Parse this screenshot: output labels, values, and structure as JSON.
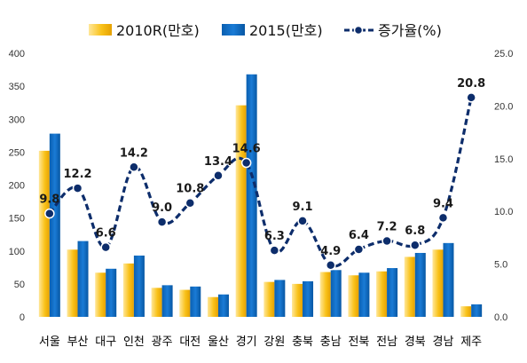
{
  "chart_data": {
    "type": "bar",
    "categories": [
      "서울",
      "부산",
      "대구",
      "인천",
      "광주",
      "대전",
      "울산",
      "경기",
      "강원",
      "충북",
      "충남",
      "전북",
      "전남",
      "경북",
      "경남",
      "제주"
    ],
    "series": [
      {
        "name": "2010R(만호)",
        "type": "bar",
        "axis": "left",
        "color": "#F9C21A",
        "values": [
          252,
          102,
          67,
          81,
          44,
          41,
          30,
          321,
          53,
          50,
          68,
          63,
          69,
          91,
          102,
          16
        ]
      },
      {
        "name": "2015(만호)",
        "type": "bar",
        "axis": "left",
        "color": "#0A6BC4",
        "values": [
          278,
          115,
          73,
          93,
          48,
          46,
          34,
          368,
          56,
          54,
          71,
          67,
          74,
          97,
          112,
          19
        ]
      },
      {
        "name": "증가율(%)",
        "type": "line",
        "axis": "right",
        "color": "#0D2D6B",
        "line_style": "dashed",
        "values": [
          9.8,
          12.2,
          6.6,
          14.2,
          9.0,
          10.8,
          13.4,
          14.6,
          6.3,
          9.1,
          4.9,
          6.4,
          7.2,
          6.8,
          9.4,
          20.8
        ],
        "data_labels": [
          "9.8",
          "12.2",
          "6.6",
          "14.2",
          "9.0",
          "10.8",
          "13.4",
          "14.6",
          "6.3",
          "9.1",
          "4.9",
          "6.4",
          "7.2",
          "6.8",
          "9.4",
          "20.8"
        ]
      }
    ],
    "y_left": {
      "min": 0,
      "max": 400,
      "ticks": [
        "0",
        "50",
        "100",
        "150",
        "200",
        "250",
        "300",
        "350",
        "400"
      ]
    },
    "y_right": {
      "min": 0,
      "max": 25,
      "ticks": [
        "0.0",
        "5.0",
        "10.0",
        "15.0",
        "20.0",
        "25.0"
      ]
    },
    "grid": false,
    "legend": {
      "position": "top",
      "items": [
        "2010R(만호)",
        "2015(만호)",
        "증가율(%)"
      ]
    }
  }
}
